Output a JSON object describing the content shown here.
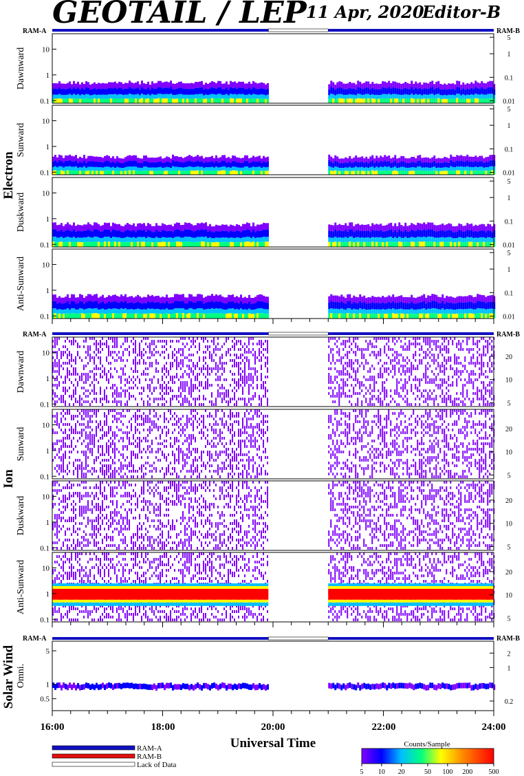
{
  "header": {
    "title": "GEOTAIL / LEP",
    "date": "11 Apr, 2020",
    "editor": "Editor-B"
  },
  "ram_labels": {
    "left": "RAM-A",
    "right": "RAM-B"
  },
  "group_labels": {
    "electron": "Electron",
    "ion": "Ion",
    "solar_wind": "Solar Wind"
  },
  "panel_labels": [
    "Dawnward",
    "Sunward",
    "Duskward",
    "Anti-Sunward",
    "Dawnward",
    "Sunward",
    "Duskward",
    "Anti-Sunward",
    "Omni."
  ],
  "x_axis": {
    "title": "Universal Time",
    "ticks": [
      "16:00",
      "18:00",
      "20:00",
      "22:00",
      "24:00"
    ]
  },
  "legend": {
    "items": [
      {
        "label": "RAM-A",
        "color": "#1010c0"
      },
      {
        "label": "RAM-B",
        "color": "#e01010"
      },
      {
        "label": "Lack of Data",
        "color": "#ffffff"
      }
    ]
  },
  "colorbar": {
    "title": "Counts/Sample",
    "ticks": [
      "5",
      "10",
      "20",
      "50",
      "100",
      "200",
      "500"
    ]
  },
  "chart_data": {
    "type": "heatmap",
    "x_range": [
      "16:00",
      "24:00"
    ],
    "data_gap": [
      "19:55",
      "21:00"
    ],
    "colorscale": [
      "#8000ff",
      "#0000ff",
      "#00c0ff",
      "#00ff80",
      "#ffff00",
      "#ff8000",
      "#ff0000"
    ],
    "panels": [
      {
        "group": "Electron",
        "label": "Dawnward",
        "left_ticks": [
          "0.1",
          "1",
          "10"
        ],
        "right_ticks": [
          "0.01",
          "0.1",
          "1",
          "5"
        ],
        "band": [
          0.08,
          0.5
        ]
      },
      {
        "group": "Electron",
        "label": "Sunward",
        "left_ticks": [
          "0.1",
          "1",
          "10"
        ],
        "right_ticks": [
          "0.01",
          "0.1",
          "1",
          "5"
        ],
        "band": [
          0.08,
          0.4
        ]
      },
      {
        "group": "Electron",
        "label": "Duskward",
        "left_ticks": [
          "0.1",
          "1",
          "10"
        ],
        "right_ticks": [
          "0.01",
          "0.1",
          "1",
          "5"
        ],
        "band": [
          0.08,
          0.6
        ]
      },
      {
        "group": "Electron",
        "label": "Anti-Sunward",
        "left_ticks": [
          "0.1",
          "1",
          "10"
        ],
        "right_ticks": [
          "0.01",
          "0.1",
          "1",
          "5"
        ],
        "band": [
          0.08,
          0.6
        ]
      },
      {
        "group": "Ion",
        "label": "Dawnward",
        "left_ticks": [
          "0.1",
          "1",
          "10"
        ],
        "right_ticks": [
          "5",
          "10",
          "20"
        ],
        "band": [
          0.08,
          40
        ]
      },
      {
        "group": "Ion",
        "label": "Sunward",
        "left_ticks": [
          "0.1",
          "1",
          "10"
        ],
        "right_ticks": [
          "5",
          "10",
          "20"
        ],
        "band": [
          0.08,
          40
        ]
      },
      {
        "group": "Ion",
        "label": "Duskward",
        "left_ticks": [
          "0.1",
          "1",
          "10"
        ],
        "right_ticks": [
          "5",
          "10",
          "20"
        ],
        "band": [
          0.08,
          40
        ]
      },
      {
        "group": "Ion",
        "label": "Anti-Sunward",
        "left_ticks": [
          "0.1",
          "1",
          "10"
        ],
        "right_ticks": [
          "5",
          "10",
          "20"
        ],
        "band": [
          0.4,
          2
        ]
      },
      {
        "group": "Solar Wind",
        "label": "Omni.",
        "left_ticks": [
          "0.5",
          "1",
          "5"
        ],
        "right_ticks": [
          "0.2",
          "1",
          "2"
        ],
        "band": [
          0.7,
          1.3
        ]
      }
    ]
  }
}
